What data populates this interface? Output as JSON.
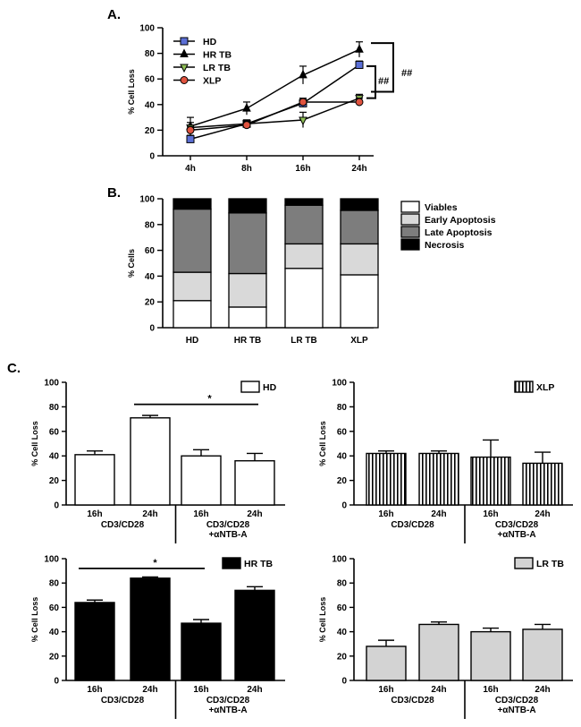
{
  "panels": {
    "a": "A.",
    "b": "B.",
    "c": "C."
  },
  "chart_data": [
    {
      "id": "A",
      "type": "line",
      "x": [
        "4h",
        "8h",
        "16h",
        "24h"
      ],
      "ylabel": "% Cell Loss",
      "ylim": [
        0,
        100
      ],
      "yticks": [
        0,
        20,
        40,
        60,
        80,
        100
      ],
      "series": [
        {
          "name": "HD",
          "marker": "square",
          "color": "#5b6fd6",
          "values": [
            13,
            25,
            41,
            71
          ],
          "err": [
            3,
            3,
            3,
            3
          ]
        },
        {
          "name": "HR TB",
          "marker": "triangle",
          "color": "#000000",
          "values": [
            23,
            37,
            63,
            83
          ],
          "err": [
            7,
            5,
            7,
            6
          ]
        },
        {
          "name": "LR TB",
          "marker": "triangle-down",
          "color": "#8fbf56",
          "values": [
            22,
            25,
            28,
            45
          ],
          "err": [
            4,
            3,
            6,
            3
          ]
        },
        {
          "name": "XLP",
          "marker": "circle",
          "color": "#e0533f",
          "values": [
            20,
            24,
            42,
            42
          ],
          "err": [
            3,
            3,
            3,
            3
          ]
        }
      ],
      "annotations": [
        "##",
        "##"
      ]
    },
    {
      "id": "B",
      "type": "bar",
      "stacked": true,
      "categories": [
        "HD",
        "HR TB",
        "LR TB",
        "XLP"
      ],
      "ylabel": "% Cells",
      "ylim": [
        0,
        100
      ],
      "yticks": [
        0,
        20,
        40,
        60,
        80,
        100
      ],
      "series": [
        {
          "name": "Viables",
          "color": "#ffffff",
          "values": [
            21,
            16,
            46,
            41
          ]
        },
        {
          "name": "Early Apoptosis",
          "color": "#d9d9d9",
          "values": [
            22,
            26,
            19,
            24
          ]
        },
        {
          "name": "Late Apoptosis",
          "color": "#7d7d7d",
          "values": [
            49,
            47,
            30,
            26
          ]
        },
        {
          "name": "Necrosis",
          "color": "#000000",
          "values": [
            8,
            11,
            5,
            9
          ]
        }
      ]
    },
    {
      "id": "C-HD",
      "type": "bar",
      "legend": "HD",
      "fill": "#ffffff",
      "pattern": "none",
      "categories": [
        "16h",
        "24h",
        "16h",
        "24h"
      ],
      "groups": [
        "CD3/CD28",
        "CD3/CD28",
        "+αNTB-A"
      ],
      "ylabel": "% Cell Loss",
      "ylim": [
        0,
        100
      ],
      "yticks": [
        0,
        20,
        40,
        60,
        80,
        100
      ],
      "values": [
        41,
        71,
        40,
        36
      ],
      "err": [
        3,
        2,
        5,
        6
      ],
      "significance": "*",
      "sig_span": [
        1,
        3
      ]
    },
    {
      "id": "C-XLP",
      "type": "bar",
      "legend": "XLP",
      "fill": "#ffffff",
      "pattern": "stripes",
      "categories": [
        "16h",
        "24h",
        "16h",
        "24h"
      ],
      "groups": [
        "CD3/CD28",
        "CD3/CD28",
        "+αNTB-A"
      ],
      "ylabel": "% Cell Loss",
      "ylim": [
        0,
        100
      ],
      "yticks": [
        0,
        20,
        40,
        60,
        80,
        100
      ],
      "values": [
        42,
        42,
        39,
        34
      ],
      "err": [
        2,
        2,
        14,
        9
      ]
    },
    {
      "id": "C-HRTB",
      "type": "bar",
      "legend": "HR TB",
      "fill": "#000000",
      "pattern": "none",
      "categories": [
        "16h",
        "24h",
        "16h",
        "24h"
      ],
      "groups": [
        "CD3/CD28",
        "CD3/CD28",
        "+αNTB-A"
      ],
      "ylabel": "% Cell Loss",
      "ylim": [
        0,
        100
      ],
      "yticks": [
        0,
        20,
        40,
        60,
        80,
        100
      ],
      "values": [
        64,
        84,
        47,
        74
      ],
      "err": [
        2,
        1,
        3,
        3
      ],
      "significance": "*",
      "sig_span": [
        0,
        2
      ]
    },
    {
      "id": "C-LRTB",
      "type": "bar",
      "legend": "LR TB",
      "fill": "#d3d3d3",
      "pattern": "none",
      "categories": [
        "16h",
        "24h",
        "16h",
        "24h"
      ],
      "groups": [
        "CD3/CD28",
        "CD3/CD28",
        "+αNTB-A"
      ],
      "ylabel": "% Cell Loss",
      "ylim": [
        0,
        100
      ],
      "yticks": [
        0,
        20,
        40,
        60,
        80,
        100
      ],
      "values": [
        28,
        46,
        40,
        42
      ],
      "err": [
        5,
        2,
        3,
        4
      ]
    }
  ]
}
